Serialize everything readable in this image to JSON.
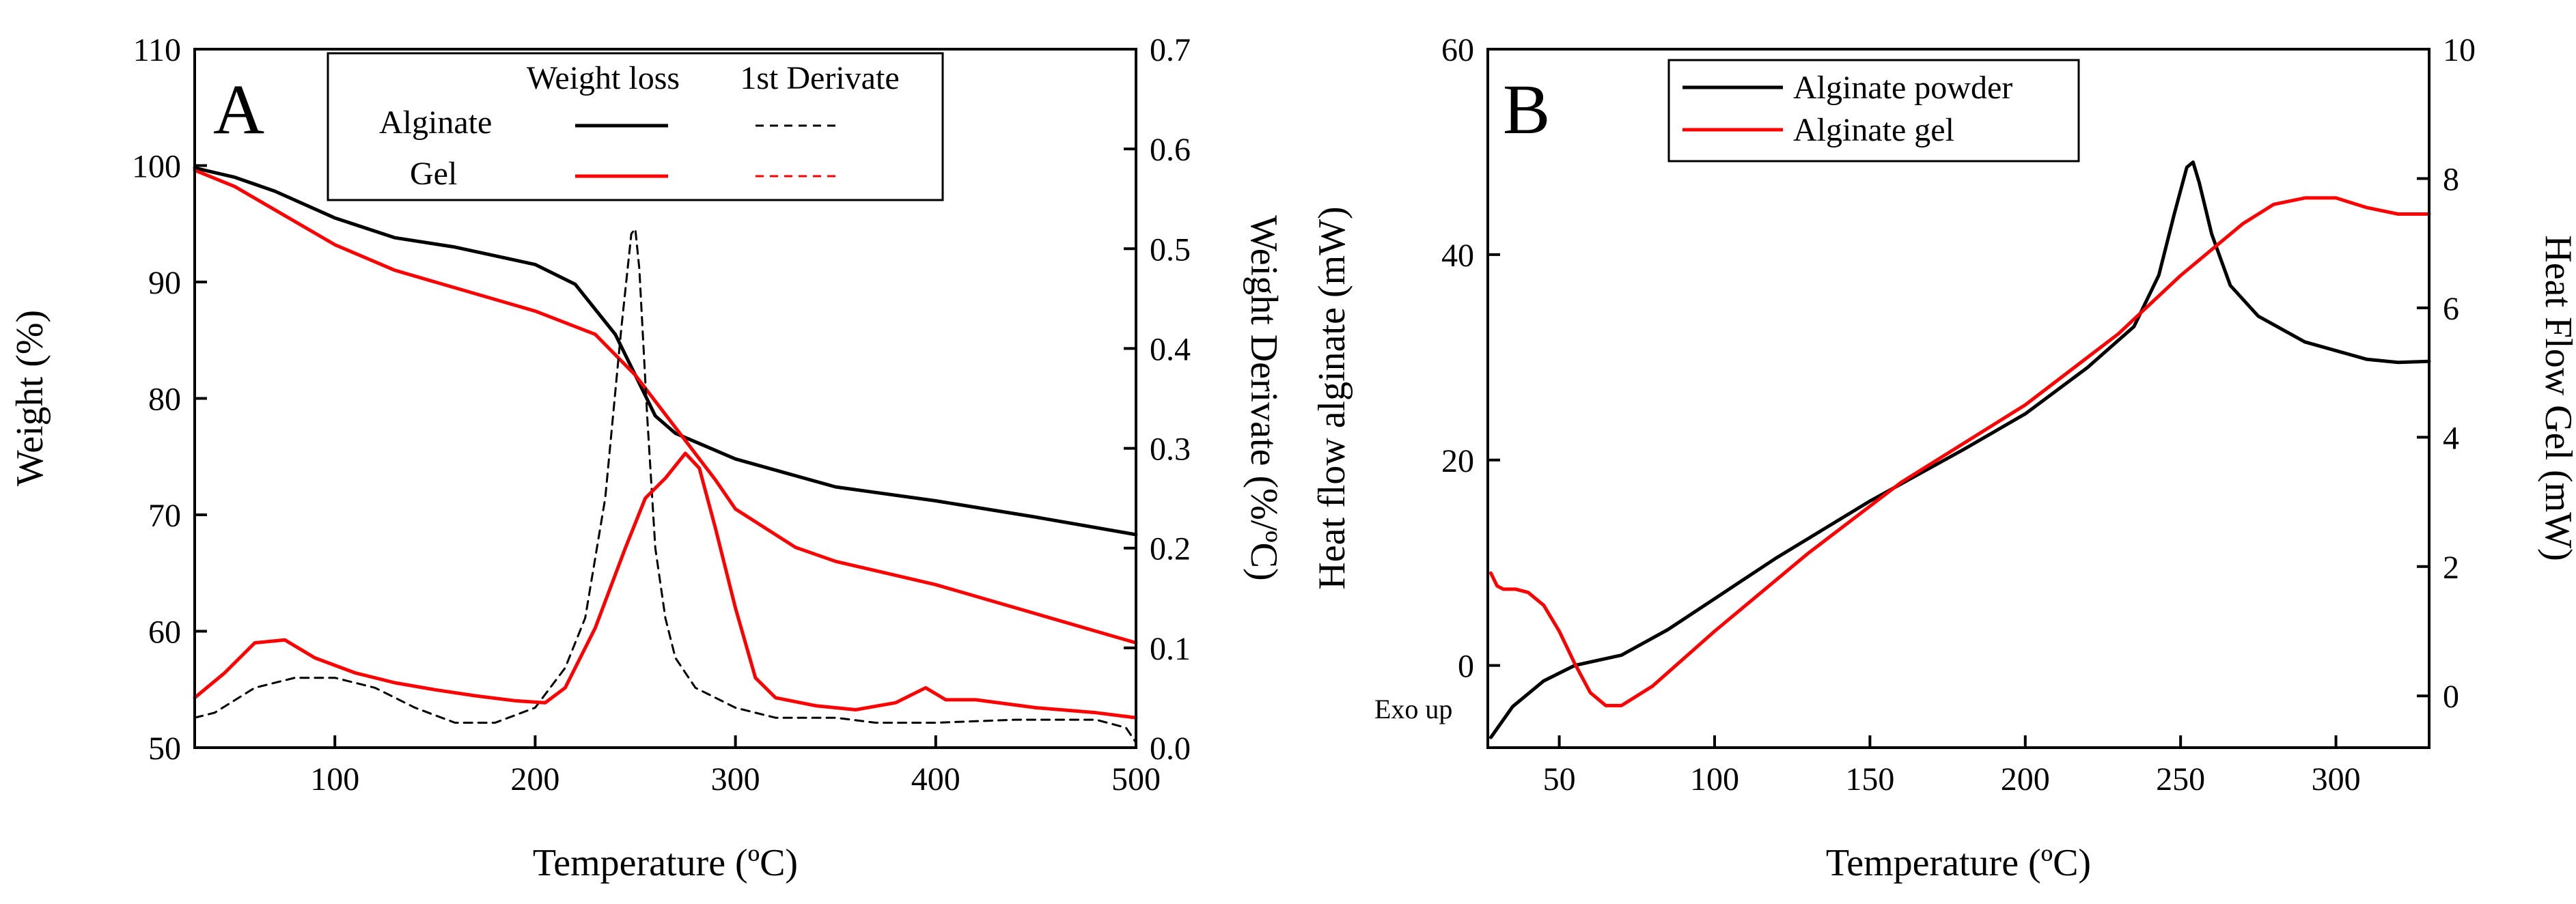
{
  "colors": {
    "alginate": "#000000",
    "gel": "#ff0000"
  },
  "chart_data": [
    {
      "type": "line",
      "panel_label": "A",
      "xlabel": "Temperature (ºC)",
      "ylabel": "Weight (%)",
      "ylabel_right": "Weight Derivate (%/ºC)",
      "xlim": [
        30,
        500
      ],
      "ylim": [
        50,
        110
      ],
      "ylim_right": [
        0,
        0.7
      ],
      "xticks": [
        100,
        200,
        300,
        400,
        500
      ],
      "yticks": [
        50,
        60,
        70,
        80,
        90,
        100,
        110
      ],
      "yticks_right": [
        "0.0",
        "0.1",
        "0.2",
        "0.3",
        "0.4",
        "0.5",
        "0.6",
        "0.7"
      ],
      "legend": {
        "position": "top",
        "col_weight_loss": "Weight loss",
        "col_derivate": "1st Derivate",
        "row_alginate": "Alginate",
        "row_gel": "Gel"
      },
      "series": [
        {
          "name": "Alginate weight loss",
          "axis": "left",
          "style": "solid",
          "color": "#000000",
          "x": [
            30,
            50,
            70,
            100,
            130,
            160,
            200,
            220,
            240,
            250,
            260,
            270,
            300,
            350,
            400,
            450,
            500
          ],
          "y": [
            99.8,
            99.0,
            97.8,
            95.5,
            93.8,
            93.0,
            91.5,
            89.8,
            85.5,
            82.0,
            78.5,
            77.0,
            74.8,
            72.4,
            71.2,
            69.8,
            68.3
          ]
        },
        {
          "name": "Gel weight loss",
          "axis": "left",
          "style": "solid",
          "color": "#ff0000",
          "x": [
            30,
            50,
            70,
            100,
            130,
            160,
            200,
            230,
            250,
            270,
            290,
            300,
            330,
            350,
            400,
            450,
            500
          ],
          "y": [
            99.6,
            98.2,
            96.2,
            93.2,
            91.0,
            89.5,
            87.5,
            85.5,
            82.0,
            77.5,
            73.0,
            70.5,
            67.2,
            66.0,
            64.0,
            61.5,
            59.0
          ]
        },
        {
          "name": "Alginate 1st derivate",
          "axis": "right",
          "style": "dashed",
          "color": "#000000",
          "x": [
            30,
            40,
            60,
            80,
            100,
            120,
            140,
            160,
            180,
            200,
            215,
            225,
            235,
            243,
            248,
            250,
            252,
            256,
            260,
            265,
            270,
            280,
            300,
            320,
            350,
            370,
            400,
            440,
            480,
            495,
            500
          ],
          "y": [
            0.03,
            0.035,
            0.06,
            0.07,
            0.07,
            0.06,
            0.04,
            0.025,
            0.025,
            0.04,
            0.08,
            0.13,
            0.25,
            0.42,
            0.515,
            0.52,
            0.48,
            0.33,
            0.2,
            0.13,
            0.09,
            0.06,
            0.04,
            0.03,
            0.03,
            0.025,
            0.025,
            0.028,
            0.028,
            0.02,
            0.005
          ]
        },
        {
          "name": "Gel 1st derivate",
          "axis": "right",
          "style": "solid",
          "color": "#ff0000",
          "x": [
            30,
            45,
            60,
            75,
            90,
            110,
            130,
            150,
            170,
            190,
            205,
            215,
            230,
            245,
            255,
            265,
            275,
            282,
            290,
            300,
            310,
            320,
            340,
            360,
            380,
            395,
            405,
            420,
            450,
            480,
            500
          ],
          "y": [
            0.05,
            0.075,
            0.105,
            0.108,
            0.09,
            0.075,
            0.065,
            0.058,
            0.052,
            0.047,
            0.045,
            0.06,
            0.12,
            0.2,
            0.25,
            0.27,
            0.295,
            0.28,
            0.22,
            0.14,
            0.07,
            0.05,
            0.042,
            0.038,
            0.045,
            0.06,
            0.048,
            0.048,
            0.04,
            0.035,
            0.03
          ]
        }
      ]
    },
    {
      "type": "line",
      "panel_label": "B",
      "xlabel": "Temperature (ºC)",
      "ylabel": "Heat flow alginate (mW)",
      "ylabel_right": "Heat Flow Gel (mW)",
      "annotation": "Exo up",
      "xlim": [
        27,
        330
      ],
      "ylim": [
        -8,
        60
      ],
      "ylim_right": [
        -0.8,
        10
      ],
      "xticks": [
        50,
        100,
        150,
        200,
        250,
        300
      ],
      "yticks": [
        0,
        20,
        40,
        60
      ],
      "yticks_right": [
        0,
        2,
        4,
        6,
        8,
        10
      ],
      "legend": {
        "position": "top-left",
        "entries": [
          "Alginate powder",
          "Alginate gel"
        ]
      },
      "series": [
        {
          "name": "Alginate powder",
          "axis": "left",
          "color": "#000000",
          "x": [
            28,
            35,
            45,
            55,
            70,
            85,
            100,
            120,
            150,
            180,
            200,
            220,
            235,
            243,
            248,
            252,
            254,
            256,
            260,
            266,
            275,
            290,
            310,
            320,
            330
          ],
          "y": [
            -7,
            -4,
            -1.5,
            0,
            1,
            3.5,
            6.5,
            10.5,
            16,
            21,
            24.5,
            29,
            33,
            38,
            44,
            48.5,
            49,
            47,
            42,
            37,
            34,
            31.5,
            29.8,
            29.5,
            29.6
          ]
        },
        {
          "name": "Alginate gel",
          "axis": "right",
          "color": "#ff0000",
          "x": [
            28,
            30,
            32,
            36,
            40,
            45,
            50,
            55,
            60,
            65,
            70,
            80,
            100,
            130,
            160,
            200,
            230,
            250,
            260,
            270,
            280,
            290,
            300,
            310,
            320,
            330
          ],
          "y": [
            1.9,
            1.7,
            1.65,
            1.65,
            1.6,
            1.4,
            1.0,
            0.5,
            0.05,
            -0.15,
            -0.15,
            0.15,
            1.0,
            2.2,
            3.3,
            4.5,
            5.6,
            6.5,
            6.9,
            7.3,
            7.6,
            7.7,
            7.7,
            7.55,
            7.45,
            7.45
          ]
        }
      ]
    }
  ]
}
